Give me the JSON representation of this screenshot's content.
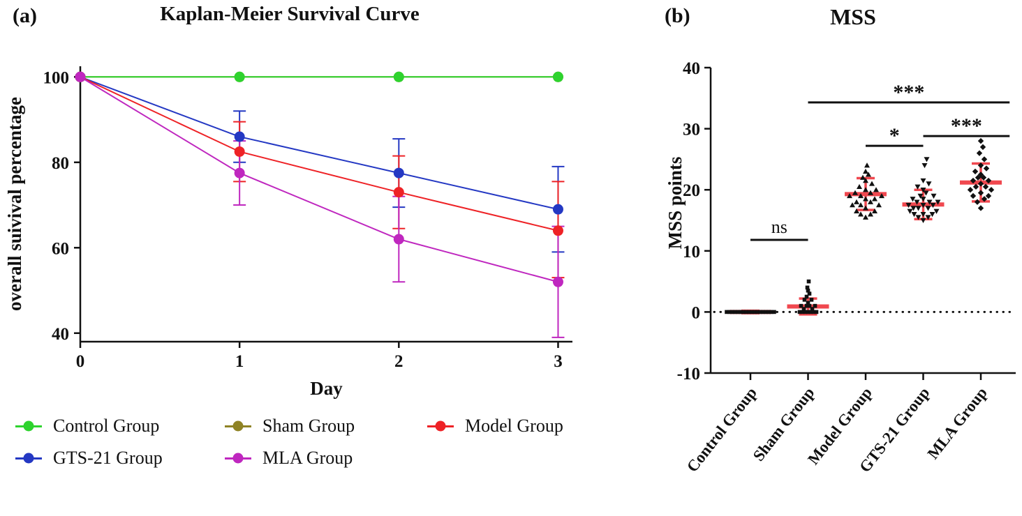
{
  "panel_a": {
    "tag": "(a)",
    "title": "Kaplan-Meier Survival Curve"
  },
  "panel_b": {
    "tag": "(b)",
    "title": "MSS"
  },
  "legend": {
    "items": [
      {
        "label": "Control Group",
        "color": "#2ed32e"
      },
      {
        "label": "Sham Group",
        "color": "#8f8325"
      },
      {
        "label": "Model Group",
        "color": "#ee2226"
      },
      {
        "label": "GTS-21 Group",
        "color": "#2438c3"
      },
      {
        "label": "MLA Group",
        "color": "#bf27bf"
      }
    ]
  },
  "chart_data": [
    {
      "type": "line",
      "title": "Kaplan-Meier Survival Curve",
      "xlabel": "Day",
      "ylabel": "overall suivival percentage",
      "x": [
        0,
        1,
        2,
        3
      ],
      "xticks": [
        0,
        1,
        2,
        3
      ],
      "yticks": [
        40,
        60,
        80,
        100
      ],
      "xlim": [
        0,
        3.09
      ],
      "ylim": [
        38,
        102.5
      ],
      "grid": false,
      "legend_position": "bottom",
      "series": [
        {
          "name": "Sham Group",
          "color": "#8f8325",
          "values": [
            100,
            100,
            100,
            100
          ],
          "err": null
        },
        {
          "name": "Control Group",
          "color": "#2ed32e",
          "values": [
            100,
            100,
            100,
            100
          ],
          "err": null
        },
        {
          "name": "GTS-21 Group",
          "color": "#2438c3",
          "values": [
            100,
            86,
            77.5,
            69
          ],
          "err": [
            null,
            [
              80,
              92
            ],
            [
              69.5,
              85.5
            ],
            [
              59,
              79
            ]
          ]
        },
        {
          "name": "Model Group",
          "color": "#ee2226",
          "values": [
            100,
            82.5,
            73,
            64
          ],
          "err": [
            null,
            [
              75.5,
              89.5
            ],
            [
              64.5,
              81.5
            ],
            [
              53,
              75.5
            ]
          ]
        },
        {
          "name": "MLA Group",
          "color": "#bf27bf",
          "values": [
            100,
            77.5,
            62,
            52
          ],
          "err": [
            null,
            [
              70,
              85
            ],
            [
              52,
              72
            ],
            [
              39,
              65
            ]
          ]
        }
      ]
    },
    {
      "type": "scatter",
      "title": "MSS",
      "ylabel": "MSS points",
      "categories": [
        "Control Group",
        "Sham Group",
        "Model Group",
        "GTS-21 Group",
        "MLA Group"
      ],
      "yticks": [
        -10,
        0,
        10,
        20,
        30,
        40
      ],
      "ylim": [
        -10,
        40
      ],
      "zero_line": 0,
      "point_color": "#111111",
      "bar_color": "#f0484f",
      "groups": [
        {
          "name": "Control Group",
          "marker": "square",
          "mean": 0,
          "sd": 0.2,
          "points": [
            [
              -34,
              0
            ],
            [
              -30,
              0
            ],
            [
              -26,
              0
            ],
            [
              -22,
              0
            ],
            [
              -18,
              0
            ],
            [
              -14,
              0
            ],
            [
              -10,
              0
            ],
            [
              -6,
              0
            ],
            [
              -2,
              0
            ],
            [
              2,
              0
            ],
            [
              6,
              0
            ],
            [
              10,
              0
            ],
            [
              14,
              0
            ],
            [
              18,
              0
            ],
            [
              22,
              0
            ],
            [
              26,
              0
            ],
            [
              30,
              0
            ],
            [
              34,
              0
            ]
          ]
        },
        {
          "name": "Sham Group",
          "marker": "square",
          "mean": 0.9,
          "sd": 1.3,
          "points": [
            [
              -12,
              0
            ],
            [
              -8,
              0
            ],
            [
              -4,
              0
            ],
            [
              0,
              0
            ],
            [
              4,
              0
            ],
            [
              8,
              0
            ],
            [
              12,
              0
            ],
            [
              -6,
              0.5
            ],
            [
              6,
              0.5
            ],
            [
              -10,
              1
            ],
            [
              -2,
              1
            ],
            [
              2,
              1
            ],
            [
              10,
              1
            ],
            [
              0,
              1.5
            ],
            [
              -5,
              2
            ],
            [
              5,
              2
            ],
            [
              -2,
              2.5
            ],
            [
              2,
              3
            ],
            [
              0,
              3.5
            ],
            [
              -1,
              4
            ],
            [
              1,
              5
            ]
          ]
        },
        {
          "name": "Model Group",
          "marker": "triangle-up",
          "mean": 19.3,
          "sd": 2.6,
          "points": [
            [
              0,
              15.5
            ],
            [
              -7,
              16
            ],
            [
              7,
              16
            ],
            [
              -13,
              16.5
            ],
            [
              13,
              16.5
            ],
            [
              0,
              17
            ],
            [
              -19,
              17.5
            ],
            [
              19,
              17.5
            ],
            [
              -7,
              17.5
            ],
            [
              7,
              18
            ],
            [
              -13,
              18
            ],
            [
              13,
              18.5
            ],
            [
              0,
              18.5
            ],
            [
              -23,
              19
            ],
            [
              23,
              19
            ],
            [
              -7,
              19
            ],
            [
              7,
              19.5
            ],
            [
              -15,
              19.5
            ],
            [
              15,
              20
            ],
            [
              0,
              20
            ],
            [
              -9,
              20.5
            ],
            [
              9,
              21
            ],
            [
              0,
              21.5
            ],
            [
              -4,
              22
            ],
            [
              4,
              22.5
            ],
            [
              0,
              23
            ],
            [
              2,
              24
            ]
          ]
        },
        {
          "name": "GTS-21 Group",
          "marker": "triangle-down",
          "mean": 17.6,
          "sd": 2.4,
          "points": [
            [
              0,
              15
            ],
            [
              -7,
              15.5
            ],
            [
              7,
              15.5
            ],
            [
              -13,
              16
            ],
            [
              13,
              16
            ],
            [
              0,
              16
            ],
            [
              -19,
              16.5
            ],
            [
              19,
              16.5
            ],
            [
              -7,
              17
            ],
            [
              7,
              17
            ],
            [
              -14,
              17
            ],
            [
              14,
              17.5
            ],
            [
              0,
              17.5
            ],
            [
              -21,
              17.5
            ],
            [
              21,
              18
            ],
            [
              -9,
              18
            ],
            [
              9,
              18
            ],
            [
              0,
              18.5
            ],
            [
              -15,
              18.5
            ],
            [
              15,
              19
            ],
            [
              -4,
              19
            ],
            [
              4,
              19.5
            ],
            [
              0,
              20
            ],
            [
              -8,
              20.5
            ],
            [
              8,
              21
            ],
            [
              0,
              21.5
            ],
            [
              2,
              24
            ],
            [
              5,
              25
            ]
          ]
        },
        {
          "name": "MLA Group",
          "marker": "diamond",
          "mean": 21.2,
          "sd": 3.1,
          "points": [
            [
              0,
              17
            ],
            [
              -5,
              18
            ],
            [
              5,
              18.5
            ],
            [
              -11,
              19
            ],
            [
              11,
              19
            ],
            [
              0,
              19.5
            ],
            [
              -15,
              20
            ],
            [
              15,
              20
            ],
            [
              -7,
              20.5
            ],
            [
              7,
              20.5
            ],
            [
              0,
              21
            ],
            [
              -11,
              21.5
            ],
            [
              11,
              21.5
            ],
            [
              -4,
              22
            ],
            [
              4,
              22
            ],
            [
              0,
              22.5
            ],
            [
              -8,
              23
            ],
            [
              8,
              23.5
            ],
            [
              0,
              24
            ],
            [
              5,
              25
            ],
            [
              -2,
              26
            ],
            [
              3,
              27
            ],
            [
              0,
              28
            ]
          ]
        }
      ],
      "significance": [
        {
          "label": "ns",
          "x1": 0,
          "x2": 1,
          "y": 11.8,
          "star": false
        },
        {
          "label": "*",
          "x1": 2,
          "x2": 3,
          "y": 27.2,
          "star": true
        },
        {
          "label": "***",
          "x1": 3,
          "x2": 4.5,
          "y": 28.8,
          "star": true
        },
        {
          "label": "***",
          "x1": 1,
          "x2": 4.5,
          "y": 34.3,
          "star": true
        }
      ]
    }
  ]
}
